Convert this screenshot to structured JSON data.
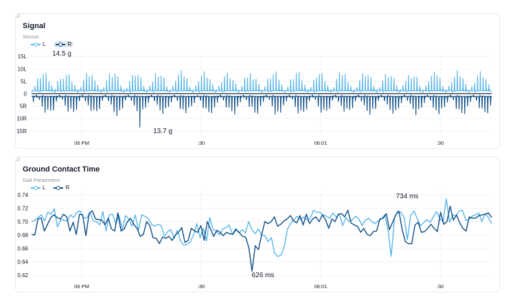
{
  "colors": {
    "left": "#56b4e9",
    "right": "#0b4a82",
    "grid": "#eceef1",
    "text": "#111827",
    "muted": "#8a8f98"
  },
  "chart_data": [
    {
      "type": "line",
      "title": "Signal",
      "subtitle": "Sensor",
      "series": [
        {
          "name": "L",
          "color": "#56b4e9",
          "amplitude_peak": 14.5
        },
        {
          "name": "R",
          "color": "#0b4a82",
          "amplitude_peak": 13.7
        }
      ],
      "y_ticks": [
        "15L",
        "10L",
        "5L",
        "0",
        "5R",
        "10R",
        "15R"
      ],
      "y_tick_values": [
        15,
        10,
        5,
        0,
        -5,
        -10,
        -15
      ],
      "x_ticks": [
        "06 PM",
        ":30",
        "06:01",
        ":30"
      ],
      "annotations": [
        {
          "text": "14.5 g",
          "series": "L",
          "value": 14.5
        },
        {
          "text": "13.7 g",
          "series": "R",
          "value": -13.7
        }
      ],
      "ylim": [
        -17,
        17
      ],
      "grid": true,
      "legend": "top-left",
      "legend_active": "R"
    },
    {
      "type": "line",
      "title": "Ground Contact Time",
      "subtitle": "Gait Parameters",
      "series": [
        {
          "name": "L",
          "color": "#56b4e9",
          "values": [
            0.7,
            0.702,
            0.706,
            0.71,
            0.701,
            0.714,
            0.711,
            0.719,
            0.692,
            0.703,
            0.702,
            0.701,
            0.71,
            0.706,
            0.714,
            0.716,
            0.706,
            0.705,
            0.714,
            0.701,
            0.7,
            0.695,
            0.715,
            0.686,
            0.71,
            0.711,
            0.697,
            0.709,
            0.688,
            0.709,
            0.704,
            0.693,
            0.71,
            0.687,
            0.71,
            0.708,
            0.705,
            0.696,
            0.693,
            0.696,
            0.694,
            0.678,
            0.685,
            0.688,
            0.675,
            0.687,
            0.671,
            0.665,
            0.666,
            0.67,
            0.68,
            0.697,
            0.676,
            0.69,
            0.671,
            0.706,
            0.688,
            0.686,
            0.68,
            0.689,
            0.691,
            0.695,
            0.681,
            0.69,
            0.683,
            0.688,
            0.683,
            0.7,
            0.688,
            0.682,
            0.689,
            0.68,
            0.679,
            0.67,
            0.676,
            0.653,
            0.648,
            0.65,
            0.663,
            0.689,
            0.698,
            0.703,
            0.708,
            0.703,
            0.707,
            0.702,
            0.705,
            0.717,
            0.714,
            0.714,
            0.71,
            0.708,
            0.705,
            0.713,
            0.707,
            0.711,
            0.694,
            0.706,
            0.7,
            0.703,
            0.708,
            0.704,
            0.694,
            0.702,
            0.705,
            0.7,
            0.697,
            0.701,
            0.704,
            0.71,
            0.688,
            0.648,
            0.705,
            0.716,
            0.714,
            0.706,
            0.673,
            0.709,
            0.716,
            0.705,
            0.694,
            0.698,
            0.703,
            0.699,
            0.707,
            0.715,
            0.705,
            0.7,
            0.734,
            0.699,
            0.71,
            0.708,
            0.716,
            0.717,
            0.702,
            0.703,
            0.708,
            0.71,
            0.713,
            0.7,
            0.712,
            0.706,
            0.697
          ]
        },
        {
          "name": "R",
          "color": "#0b4a82",
          "values": [
            0.681,
            0.68,
            0.704,
            0.705,
            0.686,
            0.696,
            0.706,
            0.71,
            0.706,
            0.704,
            0.711,
            0.707,
            0.686,
            0.699,
            0.681,
            0.711,
            0.71,
            0.679,
            0.712,
            0.716,
            0.704,
            0.703,
            0.702,
            0.695,
            0.705,
            0.689,
            0.686,
            0.713,
            0.686,
            0.689,
            0.7,
            0.705,
            0.696,
            0.69,
            0.678,
            0.681,
            0.7,
            0.694,
            0.676,
            0.675,
            0.667,
            0.677,
            0.675,
            0.678,
            0.672,
            0.68,
            0.684,
            0.691,
            0.669,
            0.672,
            0.69,
            0.686,
            0.684,
            0.694,
            0.672,
            0.7,
            0.689,
            0.678,
            0.687,
            0.684,
            0.679,
            0.684,
            0.682,
            0.681,
            0.688,
            0.684,
            0.678,
            0.677,
            0.661,
            0.626,
            0.664,
            0.658,
            0.68,
            0.7,
            0.697,
            0.7,
            0.707,
            0.693,
            0.696,
            0.701,
            0.704,
            0.709,
            0.701,
            0.698,
            0.709,
            0.695,
            0.711,
            0.697,
            0.704,
            0.707,
            0.7,
            0.71,
            0.703,
            0.69,
            0.704,
            0.7,
            0.711,
            0.712,
            0.707,
            0.717,
            0.698,
            0.695,
            0.693,
            0.684,
            0.69,
            0.681,
            0.679,
            0.685,
            0.686,
            0.704,
            0.705,
            0.712,
            0.688,
            0.699,
            0.71,
            0.715,
            0.688,
            0.67,
            0.667,
            0.667,
            0.695,
            0.699,
            0.684,
            0.685,
            0.69,
            0.696,
            0.69,
            0.685,
            0.714,
            0.696,
            0.7,
            0.723,
            0.702,
            0.71,
            0.698,
            0.69,
            0.686,
            0.707,
            0.705,
            0.705,
            0.709,
            0.71,
            0.711,
            0.713,
            0.706
          ]
        }
      ],
      "yticks": [
        0.74,
        0.72,
        0.7,
        0.68,
        0.66,
        0.64,
        0.62
      ],
      "ylim": [
        0.612,
        0.745
      ],
      "x_ticks": [
        "06 PM",
        ":30",
        "06:01",
        ":30"
      ],
      "annotations": [
        {
          "text": "734 ms",
          "series": "L",
          "value": 0.734
        },
        {
          "text": "626 ms",
          "series": "R",
          "value": 0.626
        }
      ],
      "grid": true,
      "legend": "top-left"
    }
  ]
}
